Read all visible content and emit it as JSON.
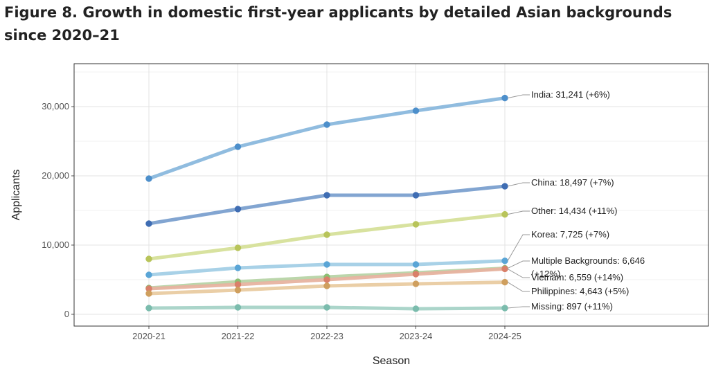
{
  "figure_title": "Figure 8. Growth in domestic first-year applicants by detailed Asian backgrounds since 2020–21",
  "chart_data": {
    "type": "line",
    "title": "Figure 8. Growth in domestic first-year applicants by detailed Asian backgrounds since 2020–21",
    "xlabel": "Season",
    "ylabel": "Applicants",
    "categories": [
      "2020-21",
      "2021-22",
      "2022-23",
      "2023-24",
      "2024-25"
    ],
    "ylim": [
      -1700,
      36200
    ],
    "y_ticks": [
      0,
      10000,
      20000,
      30000
    ],
    "y_tick_labels": [
      "0",
      "10,000",
      "20,000",
      "30,000"
    ],
    "grid": true,
    "legend": "direct end labels",
    "series": [
      {
        "values": [
          19600,
          24200,
          27400,
          29400,
          31241
        ],
        "color": "#8ab8dd",
        "point_color": "#4d8fcb",
        "label_lines": [
          "India: 31,241 (+6%)"
        ]
      },
      {
        "values": [
          13100,
          15200,
          17200,
          17200,
          18497
        ],
        "color": "#7ba0cf",
        "point_color": "#3f6db3",
        "label_lines": [
          "China: 18,497 (+7%)"
        ]
      },
      {
        "values": [
          8000,
          9600,
          11500,
          13000,
          14434
        ],
        "color": "#d6e09a",
        "point_color": "#b8c45a",
        "label_lines": [
          "Other: 14,434 (+11%)"
        ]
      },
      {
        "values": [
          5700,
          6700,
          7200,
          7200,
          7725
        ],
        "color": "#a3cfe6",
        "point_color": "#5aa5d6",
        "label_lines": [
          "Korea: 7,725 (+7%)"
        ]
      },
      {
        "values": [
          3800,
          4700,
          5400,
          6000,
          6646
        ],
        "color": "#b7d4a6",
        "point_color": "#8cbf74",
        "label_lines": [
          "Multiple Backgrounds: 6,646",
          "(+12%)"
        ]
      },
      {
        "values": [
          3700,
          4300,
          5000,
          5800,
          6559
        ],
        "color": "#e7b3a0",
        "point_color": "#d9806a",
        "label_lines": [
          "Vietnam: 6,559 (+14%)"
        ]
      },
      {
        "values": [
          3000,
          3500,
          4100,
          4400,
          4643
        ],
        "color": "#e9cba1",
        "point_color": "#cf9f5e",
        "label_lines": [
          "Philippines: 4,643 (+5%)"
        ]
      },
      {
        "values": [
          900,
          1000,
          1000,
          800,
          897
        ],
        "color": "#a6d3c7",
        "point_color": "#7bbcad",
        "label_lines": [
          "Missing: 897 (+11%)"
        ]
      }
    ]
  }
}
